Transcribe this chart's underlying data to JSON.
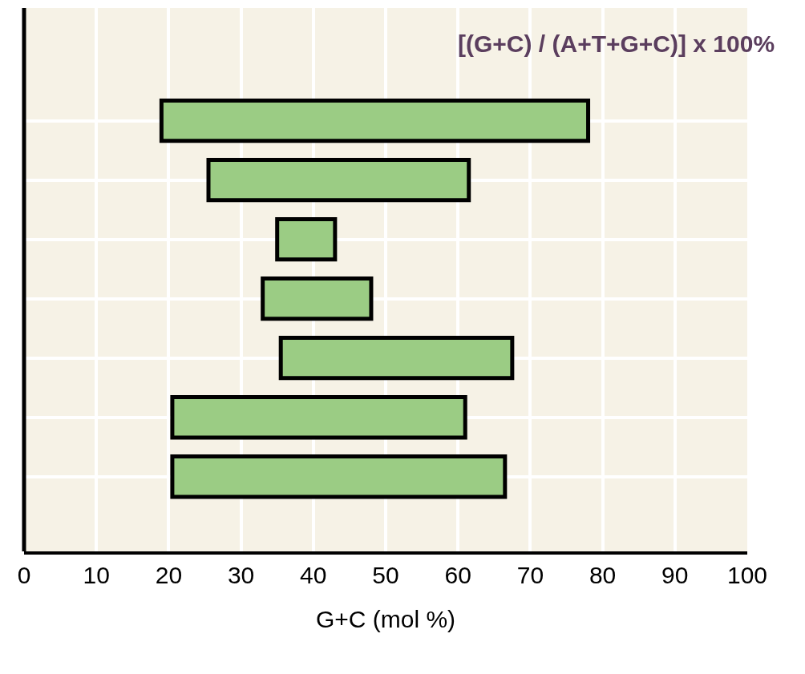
{
  "chart_data": {
    "type": "bar",
    "orientation": "horizontal",
    "categories": [
      null,
      null,
      null,
      null,
      null,
      null,
      null
    ],
    "base": [
      19,
      25.5,
      35,
      33,
      35.5,
      20.5,
      20.5
    ],
    "values": [
      59,
      36,
      8,
      15,
      32,
      40.5,
      46
    ],
    "color": "#9bcc84",
    "xlabel": "G+C (mol %)",
    "xlim": [
      0,
      100
    ],
    "xticks": [
      0,
      10,
      20,
      30,
      40,
      50,
      60,
      70,
      80,
      90,
      100
    ],
    "grid": true,
    "tick_labels": "x",
    "annotations": [
      "[(G+C) / (A+T+G+C)] x 100%"
    ]
  }
}
